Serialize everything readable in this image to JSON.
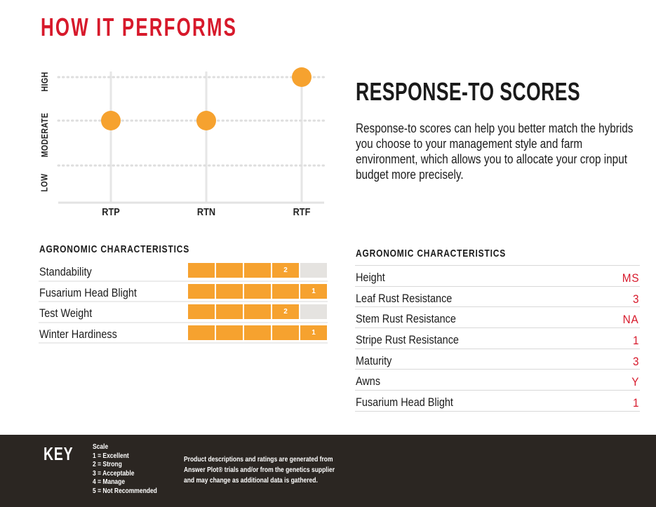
{
  "page_title": "HOW IT PERFORMS",
  "chart_data": {
    "type": "scatter",
    "categories": [
      "RTP",
      "RTN",
      "RTF"
    ],
    "levels": [
      "LOW",
      "MODERATE",
      "HIGH"
    ],
    "values": [
      "MODERATE",
      "MODERATE",
      "HIGH"
    ],
    "dot_color": "#f6a22f",
    "grid": true
  },
  "response_to": {
    "heading": "RESPONSE-TO SCORES",
    "body": "Response-to scores can help you better match the hybrids you choose to your management style and farm environment, which allows you to allocate your crop input budget more precisely."
  },
  "agronomic_left": {
    "heading": "AGRONOMIC CHARACTERISTICS",
    "rows": [
      {
        "name": "Standability",
        "score": "2"
      },
      {
        "name": "Fusarium Head Blight",
        "score": "1"
      },
      {
        "name": "Test Weight",
        "score": "2"
      },
      {
        "name": "Winter Hardiness",
        "score": "1"
      }
    ]
  },
  "agronomic_right": {
    "heading": "AGRONOMIC CHARACTERISTICS",
    "rows": [
      {
        "name": "Height",
        "value": "MS"
      },
      {
        "name": "Leaf Rust Resistance",
        "value": "3"
      },
      {
        "name": "Stem Rust Resistance",
        "value": "NA"
      },
      {
        "name": "Stripe Rust Resistance",
        "value": "1"
      },
      {
        "name": "Maturity",
        "value": "3"
      },
      {
        "name": "Awns",
        "value": "Y"
      },
      {
        "name": "Fusarium Head Blight",
        "value": "1"
      }
    ]
  },
  "key": {
    "title": "KEY",
    "scale_title": "Scale",
    "scale_items": [
      "1 = Excellent",
      "2 = Strong",
      "3 = Acceptable",
      "4 = Manage",
      "5 = Not Recommended"
    ],
    "disclaimer": "Product descriptions and ratings are generated from Answer Plot® trials and/or from the genetics supplier and may change as additional data is gathered."
  },
  "colors": {
    "brand_red": "#d7192b",
    "orange": "#f6a22f",
    "footer_bg": "#2b2622"
  }
}
